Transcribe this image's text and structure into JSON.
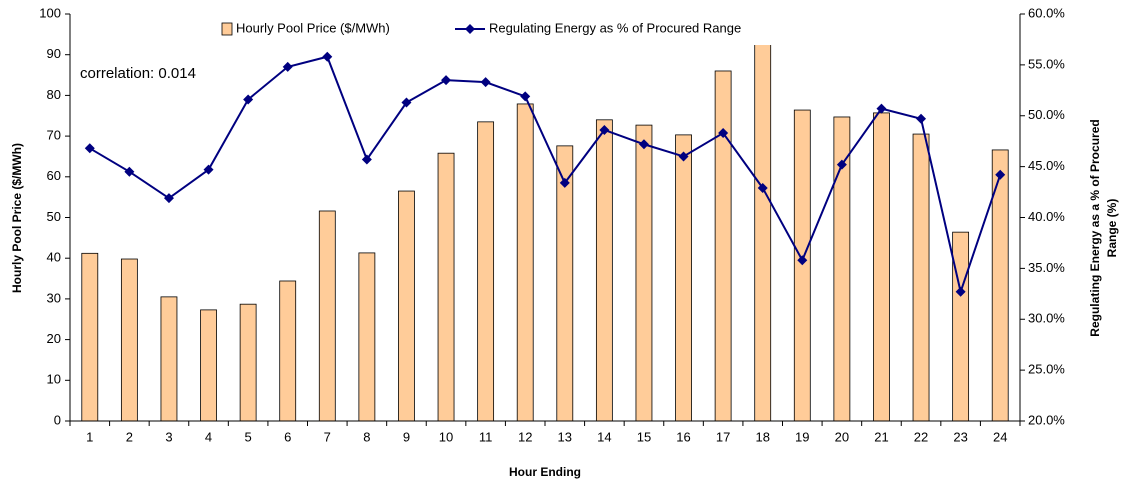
{
  "chart_data": {
    "type": "bar-line",
    "x_label": "Hour Ending",
    "y_label": "Hourly Pool Price ($/MWh)",
    "y2_label": [
      "Regulating Energy as a % of Procured",
      "Range (%)"
    ],
    "annotation": "correlation: 0.014",
    "categories": [
      "1",
      "2",
      "3",
      "4",
      "5",
      "6",
      "7",
      "8",
      "9",
      "10",
      "11",
      "12",
      "13",
      "14",
      "15",
      "16",
      "17",
      "18",
      "19",
      "20",
      "21",
      "22",
      "23",
      "24"
    ],
    "series": [
      {
        "name": "Hourly Pool Price ($/MWh)",
        "type": "bar",
        "color": "#ffcc99",
        "values": [
          41.2,
          39.8,
          30.5,
          27.3,
          28.7,
          34.4,
          51.6,
          41.3,
          56.5,
          65.8,
          73.5,
          77.9,
          67.6,
          74.0,
          72.7,
          70.3,
          86.0,
          97,
          76.4,
          74.7,
          75.7,
          70.5,
          46.4,
          66.6
        ]
      },
      {
        "name": "Regulating Energy as % of Procured Range",
        "type": "line",
        "axis": "y2",
        "color": "#000080",
        "values": [
          46.8,
          44.5,
          41.9,
          44.7,
          51.6,
          54.8,
          55.8,
          45.7,
          51.3,
          53.5,
          53.3,
          51.9,
          43.4,
          48.6,
          47.2,
          46.0,
          48.3,
          42.9,
          35.8,
          45.2,
          50.7,
          49.7,
          32.7,
          44.2
        ]
      }
    ],
    "ylim": [
      0,
      100
    ],
    "yticks": [
      0,
      10,
      20,
      30,
      40,
      50,
      60,
      70,
      80,
      90,
      100
    ],
    "y2lim": [
      20,
      60
    ],
    "y2ticks": [
      {
        "value": 20,
        "label": "20.0%"
      },
      {
        "value": 25,
        "label": "25.0%"
      },
      {
        "value": 30,
        "label": "30.0%"
      },
      {
        "value": 35,
        "label": "35.0%"
      },
      {
        "value": 40,
        "label": "40.0%"
      },
      {
        "value": 45,
        "label": "45.0%"
      },
      {
        "value": 50,
        "label": "50.0%"
      },
      {
        "value": 55,
        "label": "55.0%"
      },
      {
        "value": 60,
        "label": "60.0%"
      }
    ],
    "legend": "top",
    "grid": false
  }
}
